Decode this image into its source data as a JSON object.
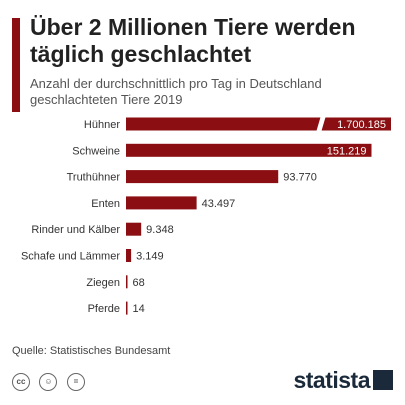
{
  "header": {
    "title": "Über 2 Millionen Tiere werden täglich geschlachtet",
    "subtitle": "Anzahl der durchschnittlich pro Tag in Deutschland geschlachteten Tiere 2019"
  },
  "source": "Quelle: Statistisches Bundesamt",
  "brand": {
    "logo": "statista",
    "color": "#1a2a3a"
  },
  "footer_icons": [
    "cc-icon",
    "person-icon",
    "equals-icon"
  ],
  "colors": {
    "bar": "#8b0e12",
    "accent": "#8b0e12"
  },
  "chart_data": {
    "type": "bar",
    "orientation": "horizontal",
    "categories": [
      "Hühner",
      "Schweine",
      "Truthühner",
      "Enten",
      "Rinder und Kälber",
      "Schafe und Lämmer",
      "Ziegen",
      "Pferde"
    ],
    "values": [
      1700185,
      151219,
      93770,
      43497,
      9348,
      3149,
      68,
      14
    ],
    "value_labels": [
      "1.700.185",
      "151.219",
      "93.770",
      "43.497",
      "9.348",
      "3.149",
      "68",
      "14"
    ],
    "axis_break": true,
    "labels_inside": [
      true,
      true,
      false,
      false,
      false,
      false,
      false,
      false
    ]
  }
}
